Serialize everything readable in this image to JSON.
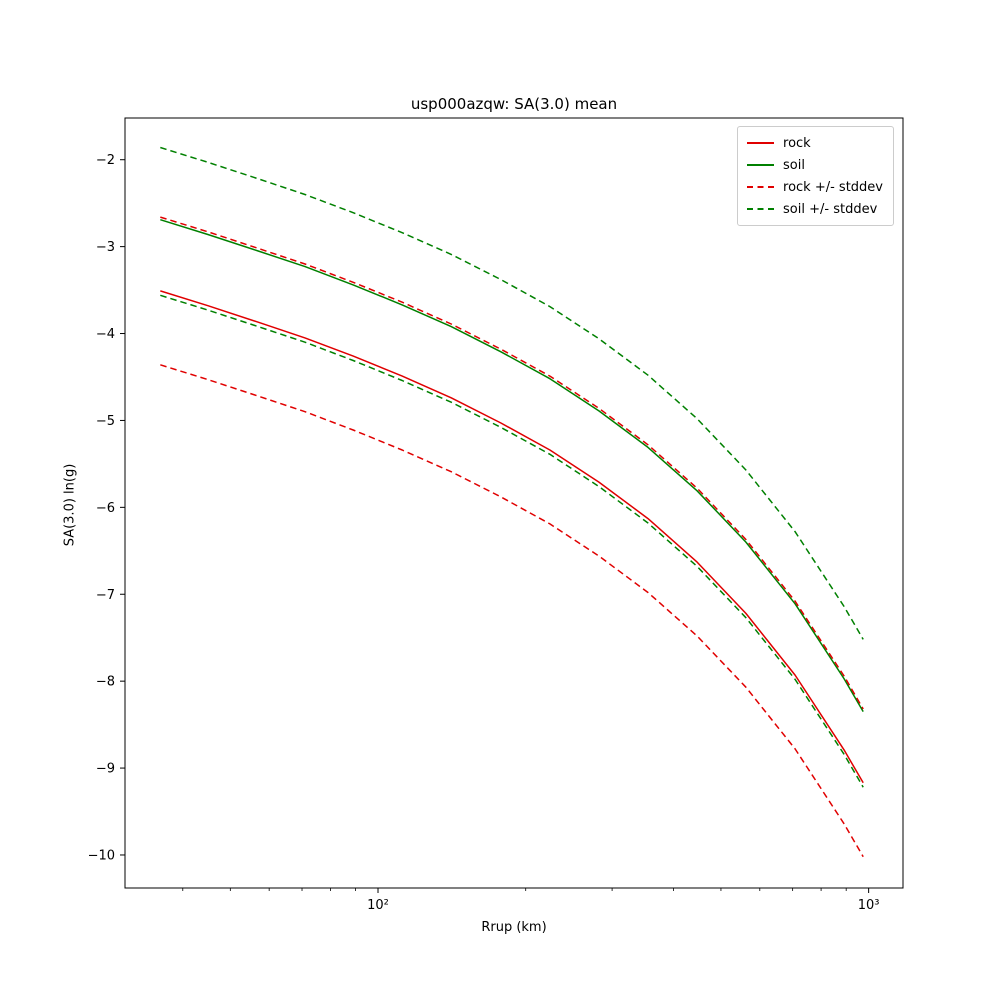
{
  "figure": {
    "background": "#ffffff"
  },
  "chart_data": {
    "type": "line",
    "title": "usp000azqw: SA(3.0) mean",
    "xlabel": "Rrup (km)",
    "ylabel": "SA(3.0) ln(g)",
    "x_scale": "log",
    "grid": false,
    "xlim": [
      30.5,
      1175
    ],
    "ylim": [
      -10.38,
      -1.52
    ],
    "x_major_ticks": [
      {
        "value": 100,
        "label": "10²"
      },
      {
        "value": 1000,
        "label": "10³"
      }
    ],
    "x_minor_ticks": [
      40,
      50,
      60,
      70,
      80,
      90,
      200,
      300,
      400,
      500,
      600,
      700,
      800,
      900
    ],
    "y_ticks": [
      {
        "value": -2,
        "label": "−2"
      },
      {
        "value": -3,
        "label": "−3"
      },
      {
        "value": -4,
        "label": "−4"
      },
      {
        "value": -5,
        "label": "−5"
      },
      {
        "value": -6,
        "label": "−6"
      },
      {
        "value": -7,
        "label": "−7"
      },
      {
        "value": -8,
        "label": "−8"
      },
      {
        "value": -9,
        "label": "−9"
      },
      {
        "value": -10,
        "label": "−10"
      }
    ],
    "x": [
      36,
      45,
      57,
      71,
      89,
      112,
      141,
      178,
      224,
      282,
      355,
      447,
      562,
      708,
      891,
      975
    ],
    "series": [
      {
        "name": "rock",
        "color": "#e00000",
        "dash": false,
        "values": [
          -3.51,
          -3.68,
          -3.87,
          -4.05,
          -4.26,
          -4.49,
          -4.74,
          -5.03,
          -5.34,
          -5.71,
          -6.13,
          -6.63,
          -7.22,
          -7.93,
          -8.79,
          -9.17
        ]
      },
      {
        "name": "soil",
        "color": "#008000",
        "dash": false,
        "values": [
          -2.69,
          -2.86,
          -3.05,
          -3.23,
          -3.44,
          -3.67,
          -3.92,
          -4.21,
          -4.52,
          -4.89,
          -5.31,
          -5.81,
          -6.4,
          -7.11,
          -7.97,
          -8.35
        ]
      },
      {
        "name": "rock_plus_stddev",
        "color": "#e00000",
        "dash": true,
        "values": [
          -2.66,
          -2.83,
          -3.02,
          -3.2,
          -3.41,
          -3.64,
          -3.89,
          -4.18,
          -4.49,
          -4.86,
          -5.28,
          -5.78,
          -6.37,
          -7.08,
          -7.94,
          -8.32
        ]
      },
      {
        "name": "rock_minus_stddev",
        "color": "#e00000",
        "dash": true,
        "values": [
          -4.36,
          -4.53,
          -4.72,
          -4.9,
          -5.11,
          -5.34,
          -5.59,
          -5.88,
          -6.19,
          -6.56,
          -6.98,
          -7.48,
          -8.07,
          -8.78,
          -9.64,
          -10.02
        ]
      },
      {
        "name": "soil_plus_stddev",
        "color": "#008000",
        "dash": true,
        "values": [
          -1.86,
          -2.03,
          -2.22,
          -2.4,
          -2.61,
          -2.84,
          -3.09,
          -3.38,
          -3.69,
          -4.06,
          -4.48,
          -4.98,
          -5.57,
          -6.28,
          -7.14,
          -7.52
        ]
      },
      {
        "name": "soil_minus_stddev",
        "color": "#008000",
        "dash": true,
        "values": [
          -3.56,
          -3.73,
          -3.92,
          -4.1,
          -4.31,
          -4.54,
          -4.79,
          -5.08,
          -5.39,
          -5.76,
          -6.18,
          -6.68,
          -7.27,
          -7.98,
          -8.84,
          -9.22
        ]
      }
    ],
    "legend": [
      {
        "label": "rock",
        "color": "#e00000",
        "dash": false
      },
      {
        "label": "soil",
        "color": "#008000",
        "dash": false
      },
      {
        "label": "rock +/- stddev",
        "color": "#e00000",
        "dash": true
      },
      {
        "label": "soil +/- stddev",
        "color": "#008000",
        "dash": true
      }
    ],
    "legend_position": "upper right"
  }
}
